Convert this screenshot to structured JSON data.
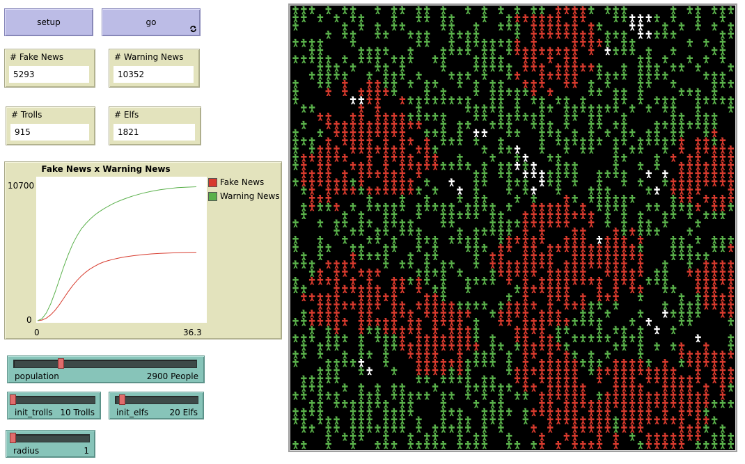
{
  "buttons": {
    "setup": "setup",
    "go": "go"
  },
  "monitors": {
    "fake_news": {
      "label": "# Fake News",
      "value": "5293"
    },
    "warning_news": {
      "label": "# Warning News",
      "value": "10352"
    },
    "trolls": {
      "label": "# Trolls",
      "value": "915"
    },
    "elfs": {
      "label": "# Elfs",
      "value": "1821"
    }
  },
  "sliders": {
    "population": {
      "label": "population",
      "value_text": "2900 People",
      "fraction": 0.25
    },
    "init_trolls": {
      "label": "init_trolls",
      "value_text": "10 Trolls",
      "fraction": 0.0
    },
    "init_elfs": {
      "label": "init_elfs",
      "value_text": "20 Elfs",
      "fraction": 0.05
    },
    "radius": {
      "label": "radius",
      "value_text": "1",
      "fraction": 0.0
    }
  },
  "colors": {
    "fake_news": "#d73a2d",
    "warning_news": "#59b04a",
    "neutral": "#ffffff",
    "world_background": "#000000"
  },
  "chart_data": {
    "type": "line",
    "title": "Fake News x Warning News",
    "xlabel": "",
    "ylabel": "",
    "xlim": [
      0,
      36.3
    ],
    "ylim": [
      0,
      10700
    ],
    "x_tick_labels": [
      "0",
      "36.3"
    ],
    "y_tick_labels": [
      "0",
      "10700"
    ],
    "legend_position": "right",
    "series": [
      {
        "name": "Fake News",
        "color": "#d73a2d",
        "points": [
          [
            0,
            0
          ],
          [
            1,
            50
          ],
          [
            2,
            200
          ],
          [
            3,
            450
          ],
          [
            4,
            800
          ],
          [
            5,
            1250
          ],
          [
            6,
            1750
          ],
          [
            7,
            2250
          ],
          [
            8,
            2700
          ],
          [
            9,
            3100
          ],
          [
            10,
            3450
          ],
          [
            11,
            3750
          ],
          [
            12,
            4000
          ],
          [
            13,
            4200
          ],
          [
            14,
            4380
          ],
          [
            15,
            4520
          ],
          [
            16,
            4630
          ],
          [
            17,
            4720
          ],
          [
            18,
            4800
          ],
          [
            19,
            4870
          ],
          [
            20,
            4930
          ],
          [
            21,
            4980
          ],
          [
            22,
            5030
          ],
          [
            24,
            5100
          ],
          [
            26,
            5160
          ],
          [
            28,
            5200
          ],
          [
            30,
            5230
          ],
          [
            32,
            5255
          ],
          [
            34,
            5275
          ],
          [
            36.3,
            5293
          ]
        ]
      },
      {
        "name": "Warning News",
        "color": "#59b04a",
        "points": [
          [
            0,
            0
          ],
          [
            1,
            150
          ],
          [
            2,
            600
          ],
          [
            3,
            1300
          ],
          [
            4,
            2200
          ],
          [
            5,
            3200
          ],
          [
            6,
            4200
          ],
          [
            7,
            5100
          ],
          [
            8,
            5900
          ],
          [
            9,
            6550
          ],
          [
            10,
            7100
          ],
          [
            11,
            7500
          ],
          [
            12,
            7850
          ],
          [
            13,
            8150
          ],
          [
            14,
            8400
          ],
          [
            15,
            8620
          ],
          [
            16,
            8820
          ],
          [
            17,
            9000
          ],
          [
            18,
            9160
          ],
          [
            19,
            9300
          ],
          [
            20,
            9430
          ],
          [
            21,
            9550
          ],
          [
            22,
            9660
          ],
          [
            24,
            9850
          ],
          [
            26,
            10000
          ],
          [
            28,
            10120
          ],
          [
            30,
            10210
          ],
          [
            32,
            10280
          ],
          [
            34,
            10320
          ],
          [
            36.3,
            10352
          ]
        ]
      }
    ]
  }
}
